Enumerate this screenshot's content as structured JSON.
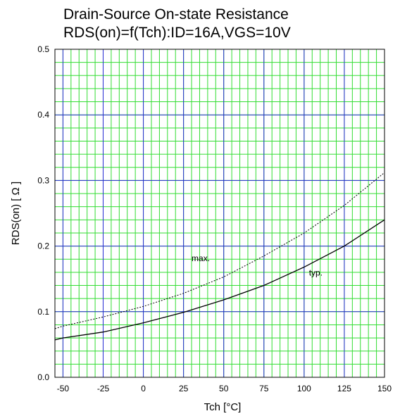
{
  "chart_data": {
    "type": "line",
    "title_lines": [
      "Drain-Source On-state Resistance",
      "RDS(on)=f(Tch):ID=16A,VGS=10V"
    ],
    "xlabel": "Tch [°C]",
    "ylabel": "RDS(on) [ Ω ]",
    "xlim": [
      -55,
      150
    ],
    "ylim": [
      0.0,
      0.5
    ],
    "x_ticks": [
      -50,
      -25,
      0,
      25,
      50,
      75,
      100,
      125,
      150
    ],
    "x_tick_labels": [
      "-50",
      "-25",
      "0",
      "25",
      "50",
      "75",
      "100",
      "125",
      "150"
    ],
    "y_ticks": [
      0.0,
      0.1,
      0.2,
      0.3,
      0.4,
      0.5
    ],
    "y_tick_labels": [
      "0.0",
      "0.1",
      "0.2",
      "0.3",
      "0.4",
      "0.5"
    ],
    "grid": true,
    "series": [
      {
        "name": "max.",
        "style": "dotted",
        "x": [
          -55,
          -50,
          -25,
          0,
          25,
          50,
          75,
          100,
          125,
          150
        ],
        "y": [
          0.074,
          0.078,
          0.092,
          0.108,
          0.128,
          0.153,
          0.185,
          0.22,
          0.262,
          0.312
        ]
      },
      {
        "name": "typ.",
        "style": "solid",
        "x": [
          -55,
          -50,
          -25,
          0,
          25,
          50,
          75,
          100,
          125,
          150
        ],
        "y": [
          0.057,
          0.06,
          0.069,
          0.083,
          0.099,
          0.118,
          0.14,
          0.168,
          0.2,
          0.24
        ]
      }
    ],
    "annotations": [
      {
        "text": "max.",
        "x": 30,
        "y": 0.177
      },
      {
        "text": "typ.",
        "x": 103,
        "y": 0.155
      }
    ],
    "colors": {
      "major_grid": "#2b2bd6",
      "minor_grid": "#33dd33",
      "line": "#000000"
    }
  }
}
